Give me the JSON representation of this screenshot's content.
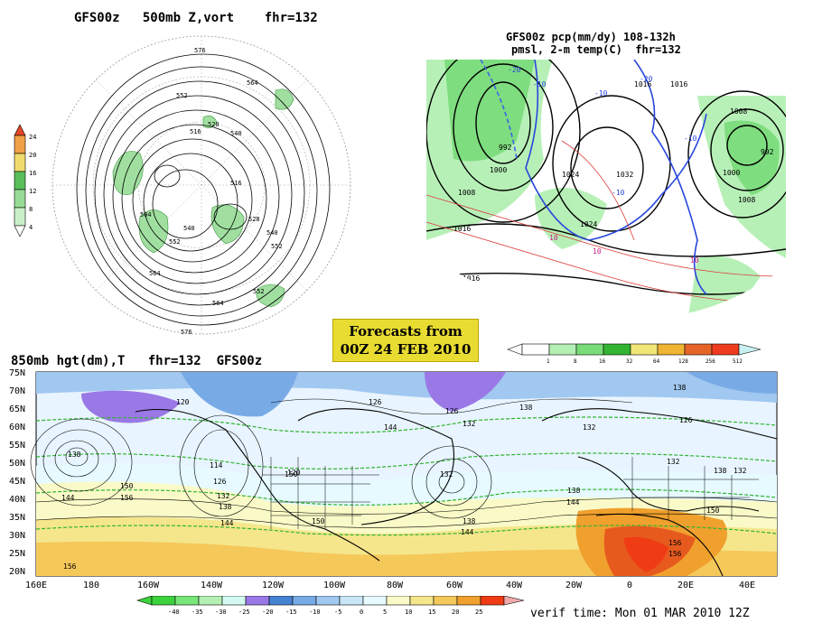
{
  "top_left": {
    "title": "GFS00z   500mb Z,vort    fhr=132",
    "colorbar": {
      "labels": [
        "24",
        "20",
        "16",
        "12",
        "8",
        "4"
      ],
      "colors": [
        "#ffffff",
        "#c8f0c8",
        "#96dc96",
        "#5abe5a",
        "#f0dc6e",
        "#f0a046",
        "#e64628"
      ]
    },
    "contour_labels": [
      "576",
      "564",
      "552",
      "540",
      "528",
      "516",
      "504",
      "564",
      "552",
      "540",
      "552",
      "516",
      "528",
      "540",
      "552",
      "564",
      "576"
    ]
  },
  "top_right": {
    "title_line1": "GFS00z pcp(mm/dy) 108-132h",
    "title_line2": "pmsl, 2-m temp(C)  fhr=132",
    "isobar_labels": [
      "992",
      "1000",
      "1008",
      "1016",
      "1024",
      "1032",
      "1016",
      "1024",
      "1008",
      "1016",
      "992",
      "1000",
      "1008",
      "1016"
    ],
    "temp_labels": [
      "-20",
      "-10",
      "-20",
      "-10",
      "-10",
      "10",
      "10",
      "10",
      "-10"
    ],
    "colorbar": {
      "labels": [
        "1",
        "8",
        "16",
        "32",
        "64",
        "128",
        "256",
        "512"
      ],
      "colors": [
        "#ffffff",
        "#b4f0b4",
        "#78dc78",
        "#32b432",
        "#f0e678",
        "#f0b432",
        "#e66428",
        "#f03c1e",
        "#c8f0f0"
      ]
    }
  },
  "forecast_box": {
    "line1": "Forecasts from",
    "line2": "00Z 24 FEB 2010"
  },
  "bottom": {
    "title": "850mb hgt(dm),T   fhr=132  GFS00z",
    "lat_labels": [
      "75N",
      "70N",
      "65N",
      "60N",
      "55N",
      "50N",
      "45N",
      "40N",
      "35N",
      "30N",
      "25N",
      "20N"
    ],
    "lon_labels": [
      "160E",
      "180",
      "160W",
      "140W",
      "120W",
      "100W",
      "80W",
      "60W",
      "40W",
      "20W",
      "0",
      "20E",
      "40E"
    ],
    "height_labels": [
      "120",
      "126",
      "138",
      "144",
      "126",
      "132",
      "138",
      "132",
      "126",
      "114",
      "120",
      "126",
      "132",
      "138",
      "144",
      "150",
      "156",
      "150",
      "156",
      "144",
      "132",
      "138",
      "144",
      "138",
      "132",
      "156",
      "150",
      "138",
      "132",
      "156",
      "150",
      "144",
      "138"
    ],
    "colorbar": {
      "labels": [
        "-40",
        "-35",
        "-30",
        "-25",
        "-20",
        "-15",
        "-10",
        "-5",
        "0",
        "5",
        "10",
        "15",
        "20",
        "25"
      ],
      "colors": [
        "#3cd23c",
        "#78e678",
        "#b4f0b4",
        "#9a78e6",
        "#4682d2",
        "#78aae6",
        "#a0c8f0",
        "#c8e6f5",
        "#e6faff",
        "#fafac8",
        "#f5e68c",
        "#f5c85a",
        "#f0a02d",
        "#e65a1e",
        "#f03c14",
        "#f0aaaa"
      ]
    },
    "verif_time": "verif time: Mon 01 MAR 2010 12Z"
  }
}
